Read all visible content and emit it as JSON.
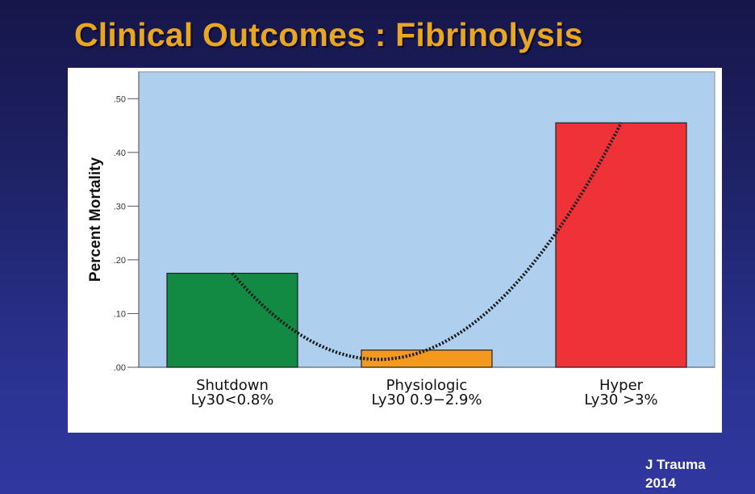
{
  "slide": {
    "title": "Clinical Outcomes : Fibrinolysis",
    "citation_line1": "J Trauma",
    "citation_line2": "2014"
  },
  "chart_data": {
    "type": "bar",
    "ylabel": "Percent Mortality",
    "ylim": [
      0,
      0.55
    ],
    "yticks": [
      0,
      0.1,
      0.2,
      0.3,
      0.4,
      0.5
    ],
    "ytick_labels": [
      ".00",
      ".10",
      ".20",
      ".30",
      ".40",
      ".50"
    ],
    "categories": [
      {
        "line1": "Shutdown",
        "line2": "Ly30<0.8%"
      },
      {
        "line1": "Physiologic",
        "line2": "Ly30 0.9−2.9%"
      },
      {
        "line1": "Hyper",
        "line2": "Ly30 >3%"
      }
    ],
    "values": [
      0.175,
      0.032,
      0.455
    ],
    "bar_colors": [
      "#128a43",
      "#f39a1e",
      "#ee3238"
    ],
    "plot_background": "#aecfee",
    "trend": "dotted quadratic curve through bar tops",
    "grid": false
  }
}
